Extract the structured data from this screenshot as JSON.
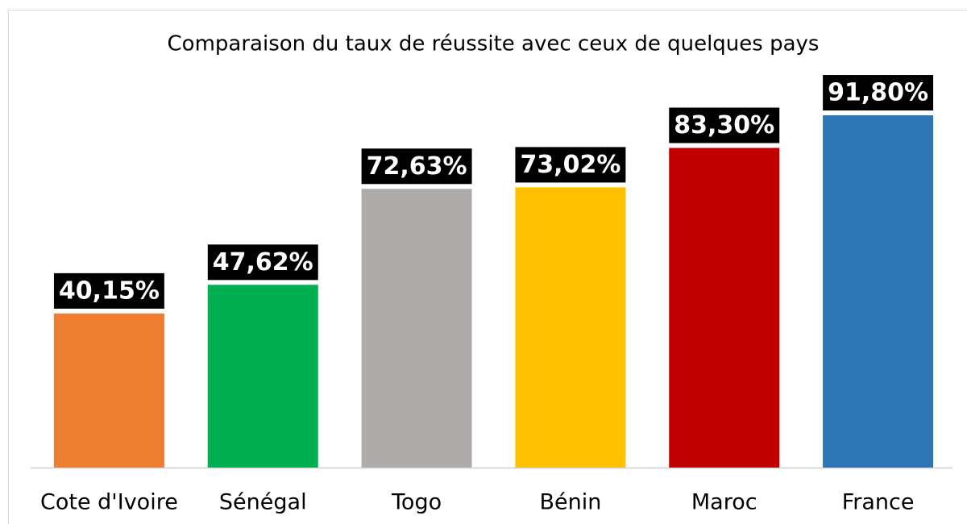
{
  "chart_data": {
    "type": "bar",
    "title": "Comparaison du taux de réussite avec ceux de quelques pays",
    "categories": [
      "Cote d'Ivoire",
      "Sénégal",
      "Togo",
      "Bénin",
      "Maroc",
      "France"
    ],
    "values": [
      40.15,
      47.62,
      72.63,
      73.02,
      83.3,
      91.8
    ],
    "value_labels": [
      "40,15%",
      "47,62%",
      "72,63%",
      "73,02%",
      "83,30%",
      "91,80%"
    ],
    "colors": [
      "#ed7d31",
      "#00b050",
      "#afabab",
      "#ffc000",
      "#c00000",
      "#2e75b6"
    ],
    "ylim": [
      0,
      100
    ]
  }
}
